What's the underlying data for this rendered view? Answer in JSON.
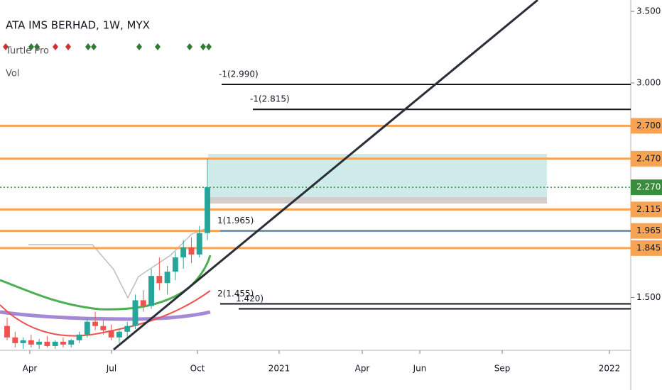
{
  "chart_data": {
    "type": "candlestick",
    "title": "ATA IMS BERHAD, 1W, MYX",
    "indicators": [
      "Turtle Pro",
      "Vol"
    ],
    "ylim": [
      1.13,
      3.58
    ],
    "yticks": [
      {
        "value": 3.5,
        "label": "3.500"
      },
      {
        "value": 3.0,
        "label": "3.000"
      },
      {
        "value": 1.5,
        "label": "1.500"
      }
    ],
    "levels": [
      {
        "value": 2.7,
        "label": "2.700",
        "color": "#f7a354"
      },
      {
        "value": 2.47,
        "label": "2.470",
        "color": "#f7a354"
      },
      {
        "value": 2.27,
        "label": "2.270",
        "color": "#388e3c"
      },
      {
        "value": 2.115,
        "label": "2.115",
        "color": "#f7a354"
      },
      {
        "value": 1.965,
        "label": "1.965",
        "color": "#f7a354"
      },
      {
        "value": 1.845,
        "label": "1.845",
        "color": "#f7a354"
      }
    ],
    "fib_lines": [
      {
        "value": 2.99,
        "label": "-1(2.990)",
        "color": "#131722"
      },
      {
        "value": 2.815,
        "label": "-1(2.815)",
        "color": "#131722"
      },
      {
        "value": 1.965,
        "label": "1(1.965)",
        "color": "#2196f3"
      },
      {
        "value": 1.455,
        "label": "2(1.455)",
        "color": "#131722"
      },
      {
        "value": 1.42,
        "label": "1.420)",
        "color": "#131722"
      }
    ],
    "time_labels": [
      "Apr",
      "Jul",
      "Oct",
      "2021",
      "Apr",
      "Jun",
      "Sep",
      "2022"
    ],
    "up_color": "#26a69a",
    "down_color": "#ef5350",
    "candles": [
      {
        "open": 1.3,
        "high": 1.36,
        "low": 1.2,
        "close": 1.22
      },
      {
        "open": 1.22,
        "high": 1.26,
        "low": 1.15,
        "close": 1.18
      },
      {
        "open": 1.18,
        "high": 1.22,
        "low": 1.14,
        "close": 1.2
      },
      {
        "open": 1.2,
        "high": 1.24,
        "low": 1.15,
        "close": 1.17
      },
      {
        "open": 1.17,
        "high": 1.21,
        "low": 1.14,
        "close": 1.19
      },
      {
        "open": 1.19,
        "high": 1.23,
        "low": 1.15,
        "close": 1.16
      },
      {
        "open": 1.16,
        "high": 1.2,
        "low": 1.14,
        "close": 1.19
      },
      {
        "open": 1.19,
        "high": 1.22,
        "low": 1.15,
        "close": 1.17
      },
      {
        "open": 1.17,
        "high": 1.21,
        "low": 1.15,
        "close": 1.2
      },
      {
        "open": 1.2,
        "high": 1.26,
        "low": 1.18,
        "close": 1.24
      },
      {
        "open": 1.24,
        "high": 1.35,
        "low": 1.22,
        "close": 1.33
      },
      {
        "open": 1.33,
        "high": 1.4,
        "low": 1.27,
        "close": 1.3
      },
      {
        "open": 1.3,
        "high": 1.34,
        "low": 1.24,
        "close": 1.27
      },
      {
        "open": 1.27,
        "high": 1.31,
        "low": 1.2,
        "close": 1.22
      },
      {
        "open": 1.22,
        "high": 1.28,
        "low": 1.18,
        "close": 1.26
      },
      {
        "open": 1.26,
        "high": 1.33,
        "low": 1.22,
        "close": 1.3
      },
      {
        "open": 1.3,
        "high": 1.52,
        "low": 1.28,
        "close": 1.48
      },
      {
        "open": 1.48,
        "high": 1.55,
        "low": 1.4,
        "close": 1.44
      },
      {
        "open": 1.44,
        "high": 1.7,
        "low": 1.42,
        "close": 1.65
      },
      {
        "open": 1.65,
        "high": 1.78,
        "low": 1.55,
        "close": 1.6
      },
      {
        "open": 1.6,
        "high": 1.72,
        "low": 1.52,
        "close": 1.68
      },
      {
        "open": 1.68,
        "high": 1.82,
        "low": 1.62,
        "close": 1.78
      },
      {
        "open": 1.78,
        "high": 1.9,
        "low": 1.7,
        "close": 1.85
      },
      {
        "open": 1.85,
        "high": 1.92,
        "low": 1.74,
        "close": 1.8
      },
      {
        "open": 1.8,
        "high": 2.0,
        "low": 1.78,
        "close": 1.95
      },
      {
        "open": 1.95,
        "high": 2.47,
        "low": 1.9,
        "close": 2.27
      }
    ]
  }
}
